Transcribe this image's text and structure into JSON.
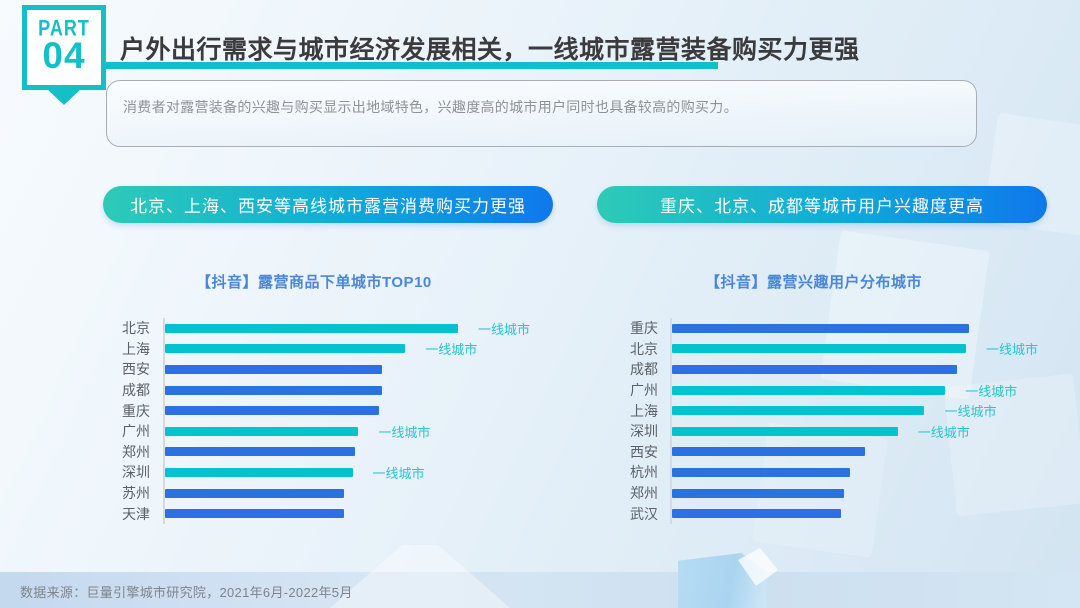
{
  "slide": {
    "badge": {
      "part_label": "PART",
      "part_number": "04"
    },
    "title": "户外出行需求与城市经济发展相关，一线城市露营装备购买力更强",
    "summary": "消费者对露营装备的兴趣与购买显示出地域特色，兴趣度高的城市用户同时也具备较高的购买力。",
    "banners": [
      {
        "text": "北京、上海、西安等高线城市露营消费购买力更强"
      },
      {
        "text": "重庆、北京、成都等城市用户兴趣度更高"
      }
    ],
    "footer": "数据来源：巨量引擎城市研究院，2021年6月-2022年5月"
  },
  "colors": {
    "accent_teal": "#14bfc8",
    "bar_teal": "#05c3ce",
    "bar_blue": "#2b71e1",
    "tier_label_teal": "#29c5cf",
    "chart_title_blue": "#4a87d8",
    "banner_gradient_start": "#2dcbb6",
    "banner_gradient_end": "#0f78ec",
    "title_text": "#3b3b3e"
  },
  "chart_data": [
    {
      "type": "bar",
      "orientation": "horizontal",
      "title": "【抖音】露营商品下单城市TOP10",
      "categories": [
        "北京",
        "上海",
        "西安",
        "成都",
        "重庆",
        "广州",
        "郑州",
        "深圳",
        "苏州",
        "天津"
      ],
      "values": [
        100,
        82,
        74,
        74,
        73,
        66,
        65,
        64,
        61,
        61
      ],
      "tier1_flags": [
        true,
        true,
        false,
        false,
        false,
        true,
        false,
        true,
        false,
        false
      ],
      "tier1_annotation": "一线城市",
      "value_note": "no numeric axis shown; values are relative bar lengths, longest bar = 100",
      "xlim": [
        0,
        100
      ],
      "grid": false,
      "legend": "inline annotation 一线城市 beside teal bars"
    },
    {
      "type": "bar",
      "orientation": "horizontal",
      "title": "【抖音】露营兴趣用户分布城市",
      "categories": [
        "重庆",
        "北京",
        "成都",
        "广州",
        "上海",
        "深圳",
        "西安",
        "杭州",
        "郑州",
        "武汉"
      ],
      "values": [
        100,
        99,
        96,
        92,
        85,
        76,
        65,
        60,
        58,
        57
      ],
      "tier1_flags": [
        false,
        true,
        false,
        true,
        true,
        true,
        false,
        false,
        false,
        false
      ],
      "tier1_annotation": "一线城市",
      "value_note": "no numeric axis shown; values are relative bar lengths, longest bar = 100",
      "xlim": [
        0,
        100
      ],
      "grid": false,
      "legend": "inline annotation 一线城市 beside teal bars"
    }
  ]
}
